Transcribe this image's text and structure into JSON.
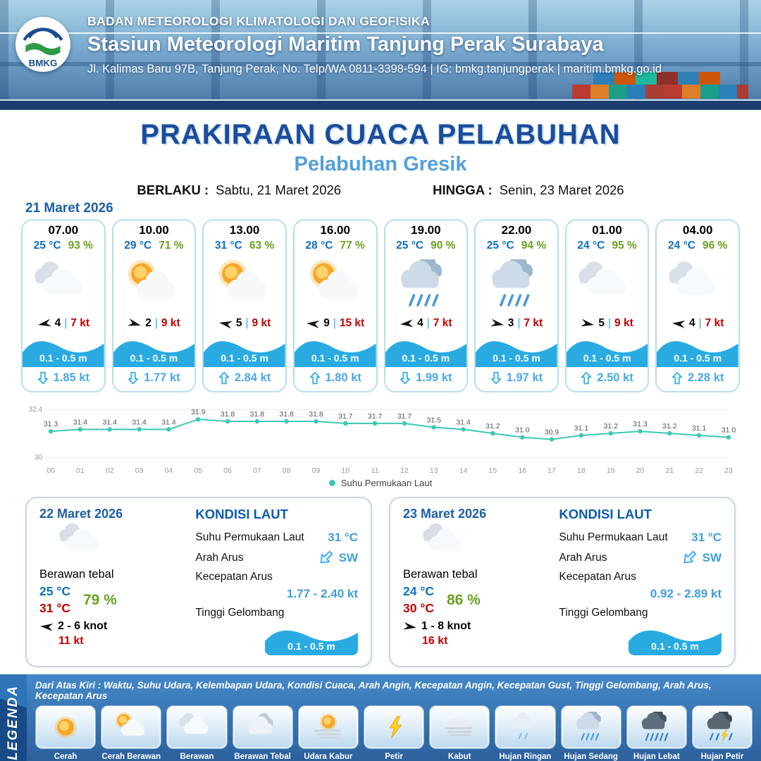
{
  "colors": {
    "accent_blue": "#29abe2",
    "title_blue": "#1b4c9c",
    "temp_blue": "#0d6fc4",
    "humidity_green": "#6aa121",
    "gust_red": "#c00000",
    "chart_teal": "#3cc8b4"
  },
  "header": {
    "org": "BADAN METEOROLOGI KLIMATOLOGI DAN GEOFISIKA",
    "station": "Stasiun Meteorologi Maritim Tanjung Perak Surabaya",
    "address": "Jl. Kalimas Baru 97B, Tanjung Perak, No. Telp/WA 0811-3398-594 | IG: bmkg.tanjungperak | maritim.bmkg.go.id",
    "logo_text": "BMKG"
  },
  "title": {
    "main": "PRAKIRAAN CUACA PELABUHAN",
    "sub": "Pelabuhan Gresik",
    "valid_from_label": "BERLAKU :",
    "valid_from": "Sabtu, 21 Maret 2026",
    "valid_to_label": "HINGGA :",
    "valid_to": "Senin, 23 Maret 2026"
  },
  "forecast": {
    "date": "21 Maret 2026",
    "wind_separator": "|",
    "cards": [
      {
        "time": "07.00",
        "temp": "25 °C",
        "rh": "93 %",
        "icon": "berawan",
        "wind_rot": 170,
        "wind": "4",
        "gust": "7 kt",
        "wave": "0.1 - 0.5 m",
        "current_dir": "down",
        "current": "1.85 kt"
      },
      {
        "time": "10.00",
        "temp": "29 °C",
        "rh": "71 %",
        "icon": "cerah-berawan",
        "wind_rot": 15,
        "wind": "2",
        "gust": "9 kt",
        "wave": "0.1 - 0.5 m",
        "current_dir": "down",
        "current": "1.77 kt"
      },
      {
        "time": "13.00",
        "temp": "31 °C",
        "rh": "63 %",
        "icon": "cerah-berawan",
        "wind_rot": 190,
        "wind": "5",
        "gust": "9 kt",
        "wave": "0.1 - 0.5 m",
        "current_dir": "up",
        "current": "2.84 kt"
      },
      {
        "time": "16.00",
        "temp": "28 °C",
        "rh": "77 %",
        "icon": "cerah-berawan",
        "wind_rot": 185,
        "wind": "9",
        "gust": "15 kt",
        "wave": "0.1 - 0.5 m",
        "current_dir": "up",
        "current": "1.80 kt"
      },
      {
        "time": "19.00",
        "temp": "25 °C",
        "rh": "90 %",
        "icon": "hujan-sedang",
        "wind_rot": 175,
        "wind": "4",
        "gust": "7 kt",
        "wave": "0.1 - 0.5 m",
        "current_dir": "down",
        "current": "1.99 kt"
      },
      {
        "time": "22.00",
        "temp": "25 °C",
        "rh": "94 %",
        "icon": "hujan-sedang",
        "wind_rot": 10,
        "wind": "3",
        "gust": "7 kt",
        "wave": "0.1 - 0.5 m",
        "current_dir": "down",
        "current": "1.97 kt"
      },
      {
        "time": "01.00",
        "temp": "24 °C",
        "rh": "95 %",
        "icon": "berawan",
        "wind_rot": 10,
        "wind": "5",
        "gust": "9 kt",
        "wave": "0.1 - 0.5 m",
        "current_dir": "up",
        "current": "2.50 kt"
      },
      {
        "time": "04.00",
        "temp": "24 °C",
        "rh": "96 %",
        "icon": "berawan",
        "wind_rot": 185,
        "wind": "4",
        "gust": "7 kt",
        "wave": "0.1 - 0.5 m",
        "current_dir": "up",
        "current": "2.28 kt"
      }
    ]
  },
  "chart_data": {
    "type": "line",
    "title": "Suhu Permukaan Laut",
    "x": [
      "00",
      "01",
      "02",
      "03",
      "04",
      "05",
      "06",
      "07",
      "08",
      "09",
      "10",
      "11",
      "12",
      "13",
      "14",
      "15",
      "16",
      "17",
      "18",
      "19",
      "20",
      "21",
      "22",
      "23"
    ],
    "series": [
      {
        "name": "Suhu Permukaan Laut",
        "values": [
          31.3,
          31.4,
          31.4,
          31.4,
          31.4,
          31.9,
          31.8,
          31.8,
          31.8,
          31.8,
          31.7,
          31.7,
          31.7,
          31.5,
          31.4,
          31.2,
          31.0,
          30.9,
          31.1,
          31.2,
          31.3,
          31.2,
          31.1,
          31.0
        ]
      }
    ],
    "ylim": [
      30,
      32.4
    ],
    "y_ticks": [
      "32.4",
      "30"
    ],
    "grid": true,
    "legend_position": "bottom",
    "color": "#3cc8b4"
  },
  "sea_labels": {
    "heading": "KONDISI LAUT",
    "sst": "Suhu Permukaan Laut",
    "arah": "Arah Arus",
    "kecepatan": "Kecepatan Arus",
    "gelombang": "Tinggi Gelombang"
  },
  "daily_cards": [
    {
      "date": "22 Maret 2026",
      "icon": "berawan",
      "condition": "Berawan tebal",
      "temp_min": "25 °C",
      "temp_max": "31 °C",
      "rh": "79 %",
      "wind_rot": 185,
      "wind": "2 - 6 knot",
      "gust": "11 kt",
      "sea": {
        "sst": "31 °C",
        "arah": "SW",
        "kecepatan": "1.77 - 2.40 kt",
        "gelombang": "0.1 - 0.5 m"
      }
    },
    {
      "date": "23 Maret 2026",
      "icon": "berawan",
      "condition": "Berawan tebal",
      "temp_min": "24 °C",
      "temp_max": "30 °C",
      "rh": "86 %",
      "wind_rot": 8,
      "wind": "1 - 8 knot",
      "gust": "16 kt",
      "sea": {
        "sst": "31 °C",
        "arah": "SW",
        "kecepatan": "0.92 - 2.89 kt",
        "gelombang": "0.1 - 0.5 m"
      }
    }
  ],
  "legend": {
    "title": "LEGENDA",
    "note": "Dari Atas Kiri : Waktu, Suhu Udara, Kelembapan Udara, Kondisi Cuaca, Arah Angin, Kecepatan Angin, Kecepatan Gust, Tinggi Gelombang, Arah Arus, Kecepatan Arus",
    "items": [
      {
        "label": "Cerah",
        "icon": "cerah"
      },
      {
        "label": "Cerah Berawan",
        "icon": "cerah-berawan"
      },
      {
        "label": "Berawan",
        "icon": "berawan"
      },
      {
        "label": "Berawan Tebal",
        "icon": "berawan-tebal"
      },
      {
        "label": "Udara Kabur",
        "icon": "udara-kabur"
      },
      {
        "label": "Petir",
        "icon": "petir"
      },
      {
        "label": "Kabut",
        "icon": "kabut"
      },
      {
        "label": "Hujan Ringan",
        "icon": "hujan-ringan"
      },
      {
        "label": "Hujan Sedang",
        "icon": "hujan-sedang"
      },
      {
        "label": "Hujan Lebat",
        "icon": "hujan-lebat"
      },
      {
        "label": "Hujan Petir",
        "icon": "hujan-petir"
      }
    ]
  }
}
